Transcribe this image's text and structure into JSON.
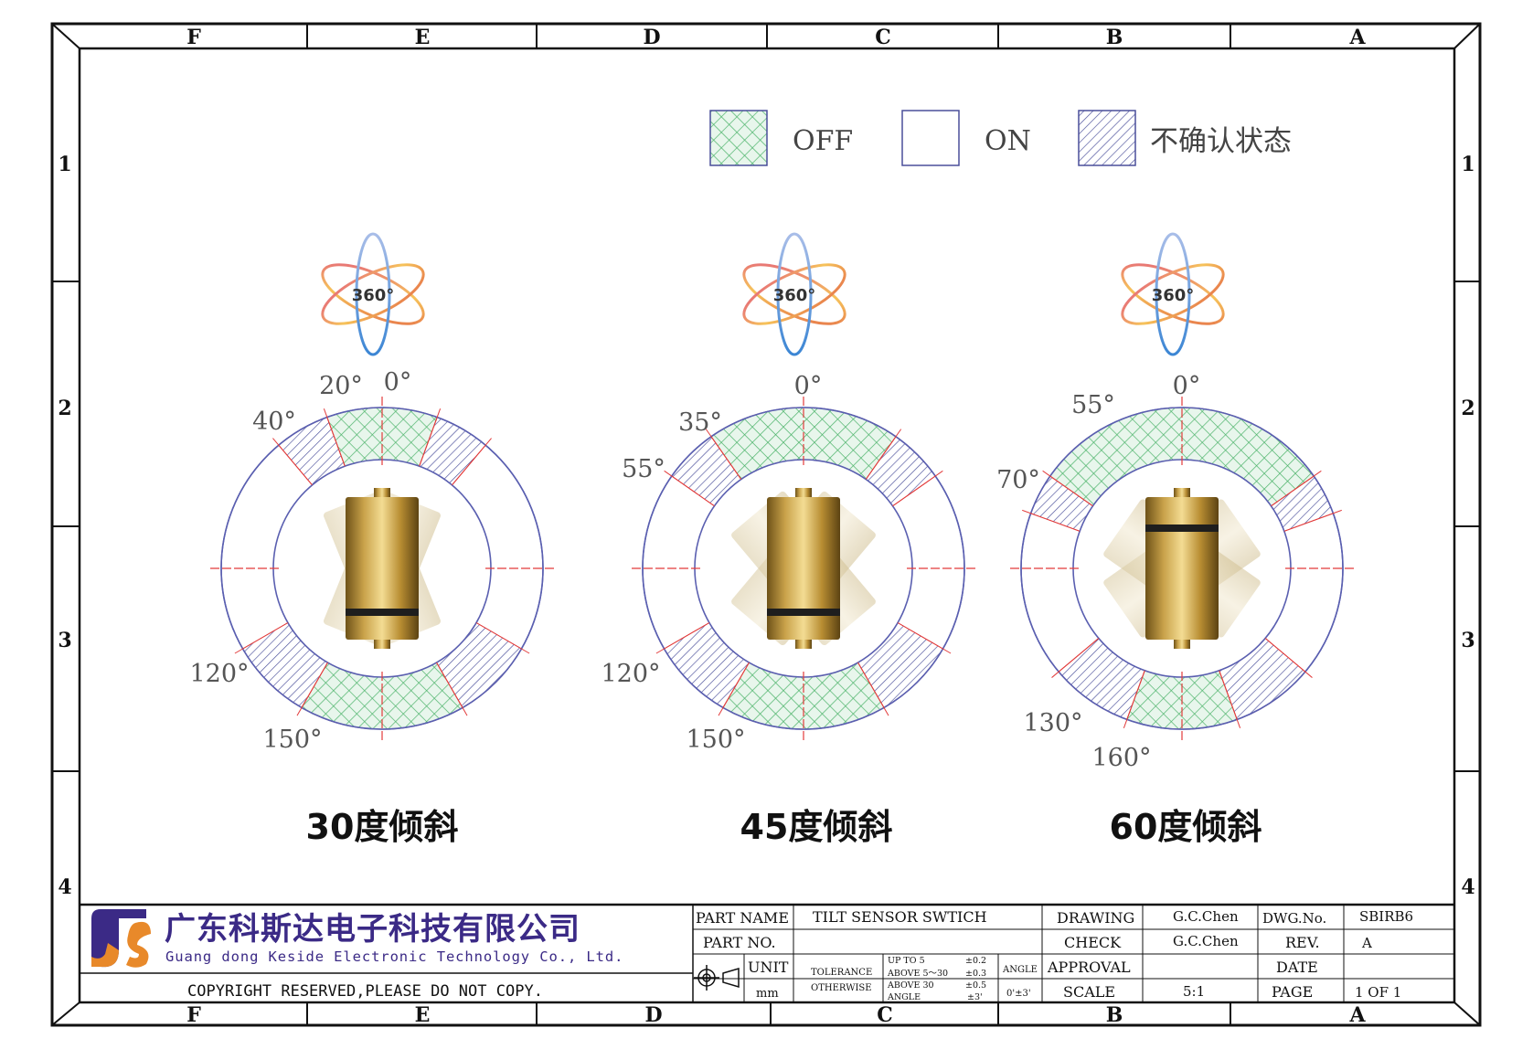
{
  "frame": {
    "columns": [
      "F",
      "E",
      "D",
      "C",
      "B",
      "A"
    ],
    "rows": [
      "1",
      "2",
      "3",
      "4"
    ]
  },
  "legend": {
    "off": "OFF",
    "on": "ON",
    "uncertain": "不确认状态"
  },
  "icon_label": "360°",
  "diagrams": [
    {
      "caption": "30度倾斜",
      "labels": [
        "20°",
        "0°",
        "40°",
        "120°",
        "150°"
      ]
    },
    {
      "caption": "45度倾斜",
      "labels": [
        "0°",
        "35°",
        "55°",
        "120°",
        "150°"
      ]
    },
    {
      "caption": "60度倾斜",
      "labels": [
        "0°",
        "55°",
        "70°",
        "130°",
        "160°"
      ]
    }
  ],
  "title_block": {
    "company_cn": "广东科斯达电子科技有限公司",
    "company_en": "Guang dong Keside  Electronic Technology Co., Ltd.",
    "copyright": "COPYRIGHT RESERVED,PLEASE DO NOT COPY.",
    "part_name_label": "PART NAME",
    "part_name": "TILT SENSOR SWTICH",
    "part_no_label": "PART NO.",
    "part_no": "",
    "unit_label": "UNIT",
    "unit": "mm",
    "tolerance_label": "TOLERANCE",
    "otherwise_label": "OTHERWISE",
    "tol_up_to": "UP TO 5",
    "tol_up_to_val": "±0.2",
    "tol_above_5": "ABOVE 5～30",
    "tol_above_5_val": "±0.3",
    "tol_above_30": "ABOVE 30",
    "tol_above_30_val": "±0.5",
    "tol_angle": "ANGLE",
    "tol_angle_val": "±3'",
    "angle_label": "ANGLE",
    "angle_value": "0'±3'",
    "drawing_label": "DRAWING",
    "drawing_by": "G.C.Chen",
    "check_label": "CHECK",
    "check_by": "G.C.Chen",
    "approval_label": "APPROVAL",
    "approval_by": "",
    "scale_label": "SCALE",
    "scale": "5:1",
    "dwg_no_label": "DWG.No.",
    "dwg_no": "SBIRB6",
    "rev_label": "REV.",
    "rev": "A",
    "date_label": "DATE",
    "date": "",
    "page_label": "PAGE",
    "page": "1 OF 1"
  },
  "colors": {
    "off_pattern": "#4cb36a",
    "uncertain_pattern": "#4a4f9a",
    "ring": "#5a5fb0",
    "tick": "#e23b3b",
    "gold": "#c9a24a"
  }
}
